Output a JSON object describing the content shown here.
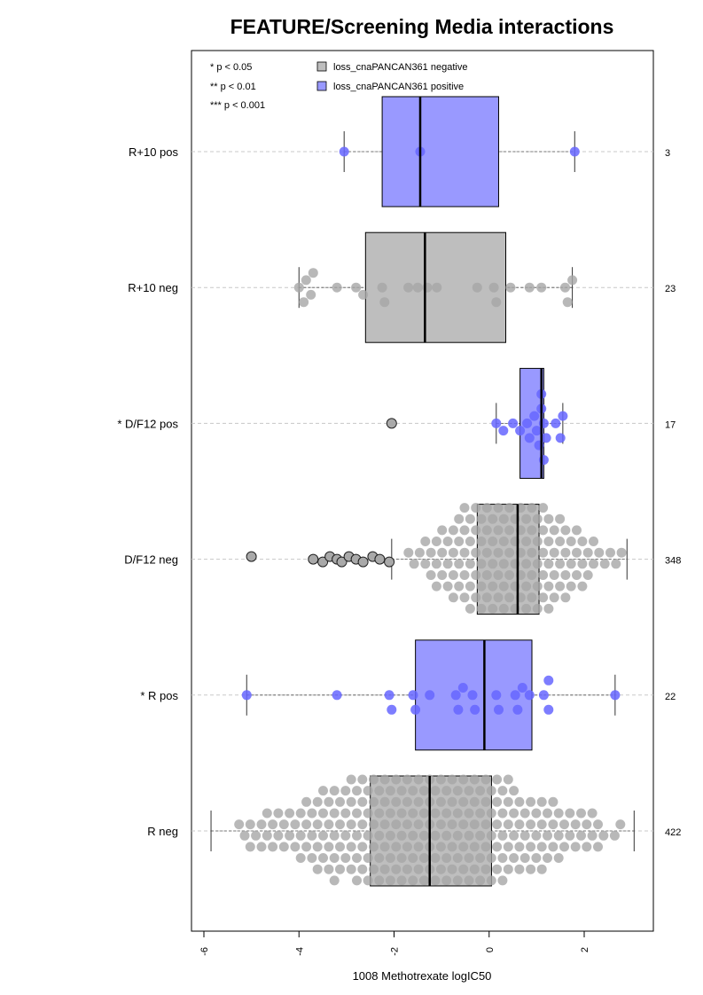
{
  "chart_data": {
    "type": "box",
    "title": "FEATURE/Screening Media interactions",
    "xlabel": "1008 Methotrexate logIC50",
    "xlim": [
      -6.3,
      3.35
    ],
    "xticks": [
      "-6",
      "-4",
      "-2",
      "0",
      "2"
    ],
    "xtick_values": [
      -6,
      -4,
      -2,
      0,
      2
    ],
    "grid": "dashed horizontal line per group",
    "significance_legend": [
      "* p < 0.05",
      "** p < 0.01",
      "*** p < 0.001"
    ],
    "legend": [
      {
        "label": "loss_cnaPANCAN361 negative",
        "color": "#bebebe"
      },
      {
        "label": "loss_cnaPANCAN361 positive",
        "color": "#9999ff"
      }
    ],
    "legend_position": "top",
    "colors": {
      "negative_box": "#bebebe",
      "positive_box": "#9999ff",
      "negative_point": "#a6a6a6",
      "positive_point": "#6666ff"
    },
    "groups": [
      {
        "label": "R+10 pos",
        "n": "3",
        "type": "positive",
        "min": -3.05,
        "q1": -2.25,
        "median": -1.45,
        "q3": 0.2,
        "max": 1.8,
        "points": [
          -3.05,
          -1.45,
          1.8
        ],
        "outliers": []
      },
      {
        "label": "R+10 neg",
        "n": "23",
        "type": "negative",
        "min": -4.0,
        "q1": -2.6,
        "median": -1.35,
        "q3": 0.35,
        "max": 1.75,
        "points": [
          -4.0,
          -3.9,
          -3.75,
          -3.85,
          -3.7,
          -3.2,
          -2.8,
          -2.65,
          -2.25,
          -2.2,
          -1.7,
          -1.5,
          -1.3,
          -1.1,
          -0.25,
          0.1,
          0.15,
          0.45,
          0.85,
          1.1,
          1.6,
          1.65,
          1.75
        ],
        "outliers": []
      },
      {
        "label": "* D/F12 pos",
        "n": "17",
        "type": "positive",
        "min": 0.15,
        "q1": 0.65,
        "median": 1.1,
        "q3": 1.15,
        "max": 1.55,
        "points": [
          0.15,
          0.3,
          0.5,
          0.65,
          0.8,
          0.85,
          0.95,
          1.0,
          1.05,
          1.1,
          1.1,
          1.15,
          1.15,
          1.2,
          1.4,
          1.5,
          1.55
        ],
        "outliers": [
          -2.05
        ]
      },
      {
        "label": "D/F12 neg",
        "n": "348",
        "type": "negative",
        "min": -2.05,
        "q1": -0.25,
        "median": 0.6,
        "q3": 1.05,
        "max": 2.9,
        "points": [],
        "outliers": [
          -5.0,
          -3.7,
          -3.5,
          -3.35,
          -3.2,
          -3.1,
          -2.95,
          -2.8,
          -2.65,
          -2.45,
          -2.3,
          -2.1
        ]
      },
      {
        "label": "* R pos",
        "n": "22",
        "type": "positive",
        "min": -5.1,
        "q1": -1.55,
        "median": -0.1,
        "q3": 0.9,
        "max": 2.65,
        "points": [
          -5.1,
          -3.2,
          -2.1,
          -2.05,
          -1.6,
          -1.55,
          -1.25,
          -0.7,
          -0.65,
          -0.55,
          -0.35,
          -0.3,
          0.15,
          0.2,
          0.55,
          0.6,
          0.7,
          0.85,
          1.15,
          1.25,
          1.25,
          2.65
        ],
        "outliers": []
      },
      {
        "label": "R neg",
        "n": "422",
        "type": "negative",
        "min": -5.85,
        "q1": -2.5,
        "median": -1.25,
        "q3": 0.05,
        "max": 3.05,
        "points": [],
        "outliers": []
      }
    ]
  }
}
